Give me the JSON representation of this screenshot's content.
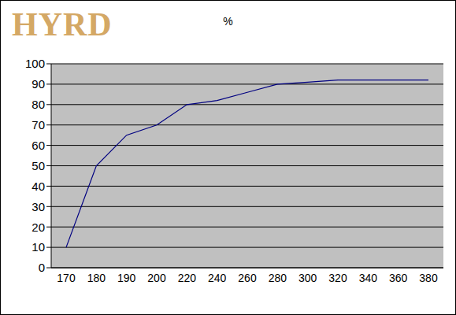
{
  "chart_data": {
    "type": "line",
    "title": "%",
    "annotations": [
      "HYRD"
    ],
    "categories": [
      "170",
      "180",
      "190",
      "200",
      "220",
      "240",
      "260",
      "280",
      "300",
      "320",
      "340",
      "360",
      "380"
    ],
    "values": [
      10,
      50,
      65,
      70,
      80,
      82,
      86,
      90,
      91,
      92,
      92,
      92,
      92
    ],
    "color": "#000080",
    "ylim": [
      0,
      100
    ],
    "yticks": [
      0,
      10,
      20,
      30,
      40,
      50,
      60,
      70,
      80,
      90,
      100
    ],
    "grid": true
  }
}
